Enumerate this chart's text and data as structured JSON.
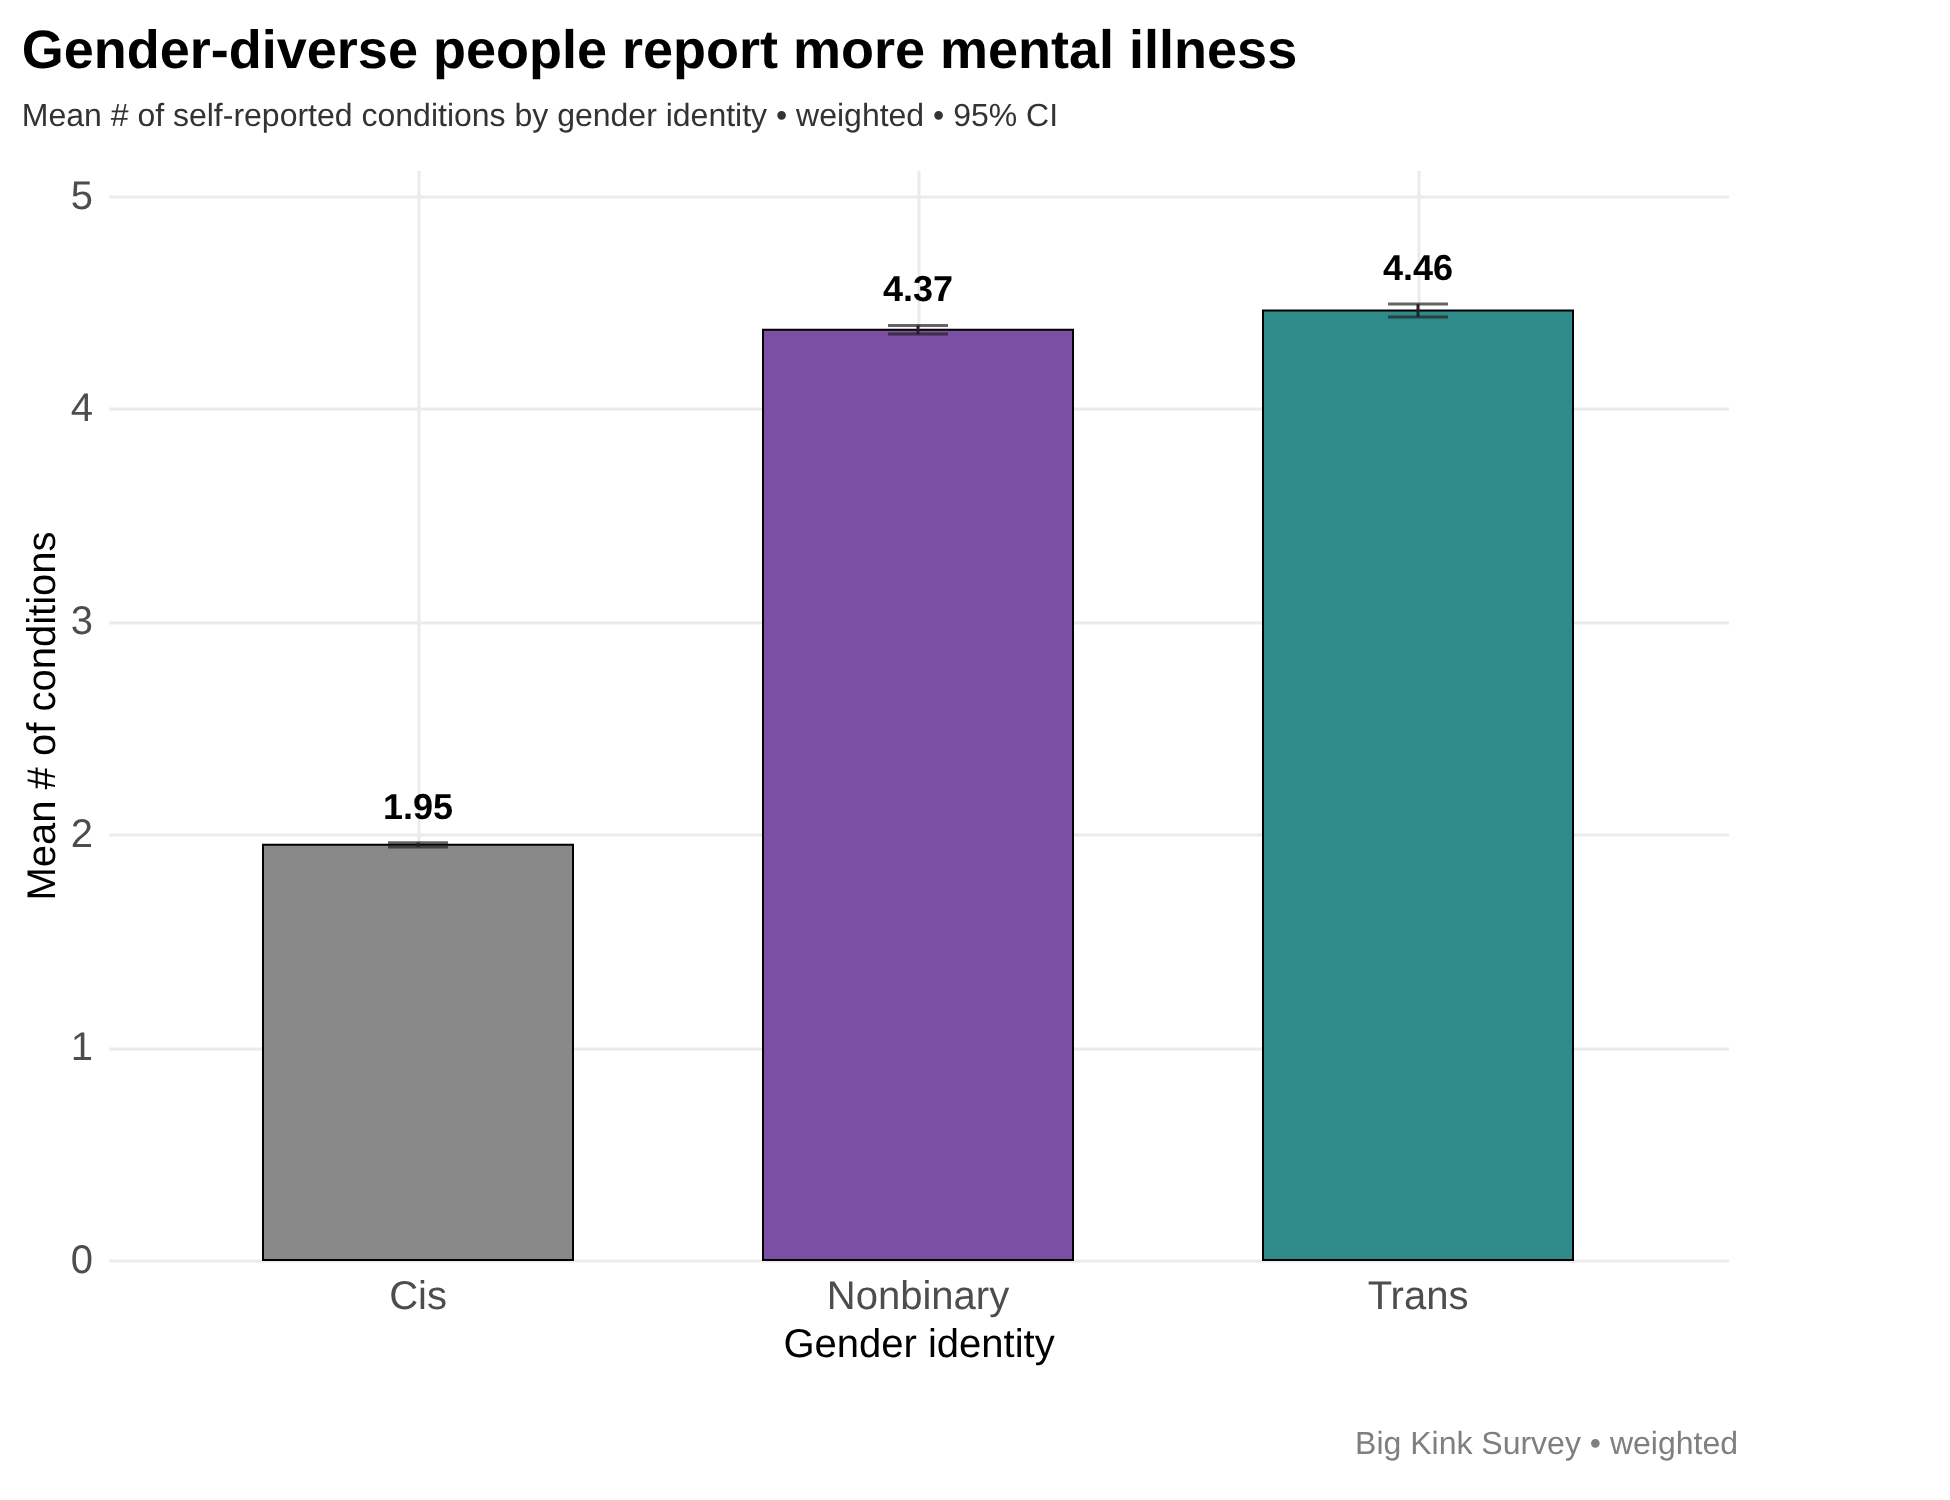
{
  "chart_data": {
    "type": "bar",
    "title": "Gender-diverse people report more mental illness",
    "subtitle": "Mean # of self-reported conditions by gender identity  •  weighted  •  95% CI",
    "xlabel": "Gender identity",
    "ylabel": "Mean # of conditions",
    "categories": [
      "Cis",
      "Nonbinary",
      "Trans"
    ],
    "values": [
      1.95,
      4.37,
      4.46
    ],
    "colors": [
      "#898989",
      "#7b50a3",
      "#2e8b8a"
    ],
    "errors": [
      [
        1.94,
        1.96
      ],
      [
        4.35,
        4.39
      ],
      [
        4.43,
        4.49
      ]
    ],
    "data_labels": true,
    "ylim": [
      0,
      5.12
    ],
    "yticks": [
      0,
      1,
      2,
      3,
      4,
      5
    ],
    "grid": true,
    "annotations": [
      "Big Kink Survey  •  weighted"
    ]
  }
}
